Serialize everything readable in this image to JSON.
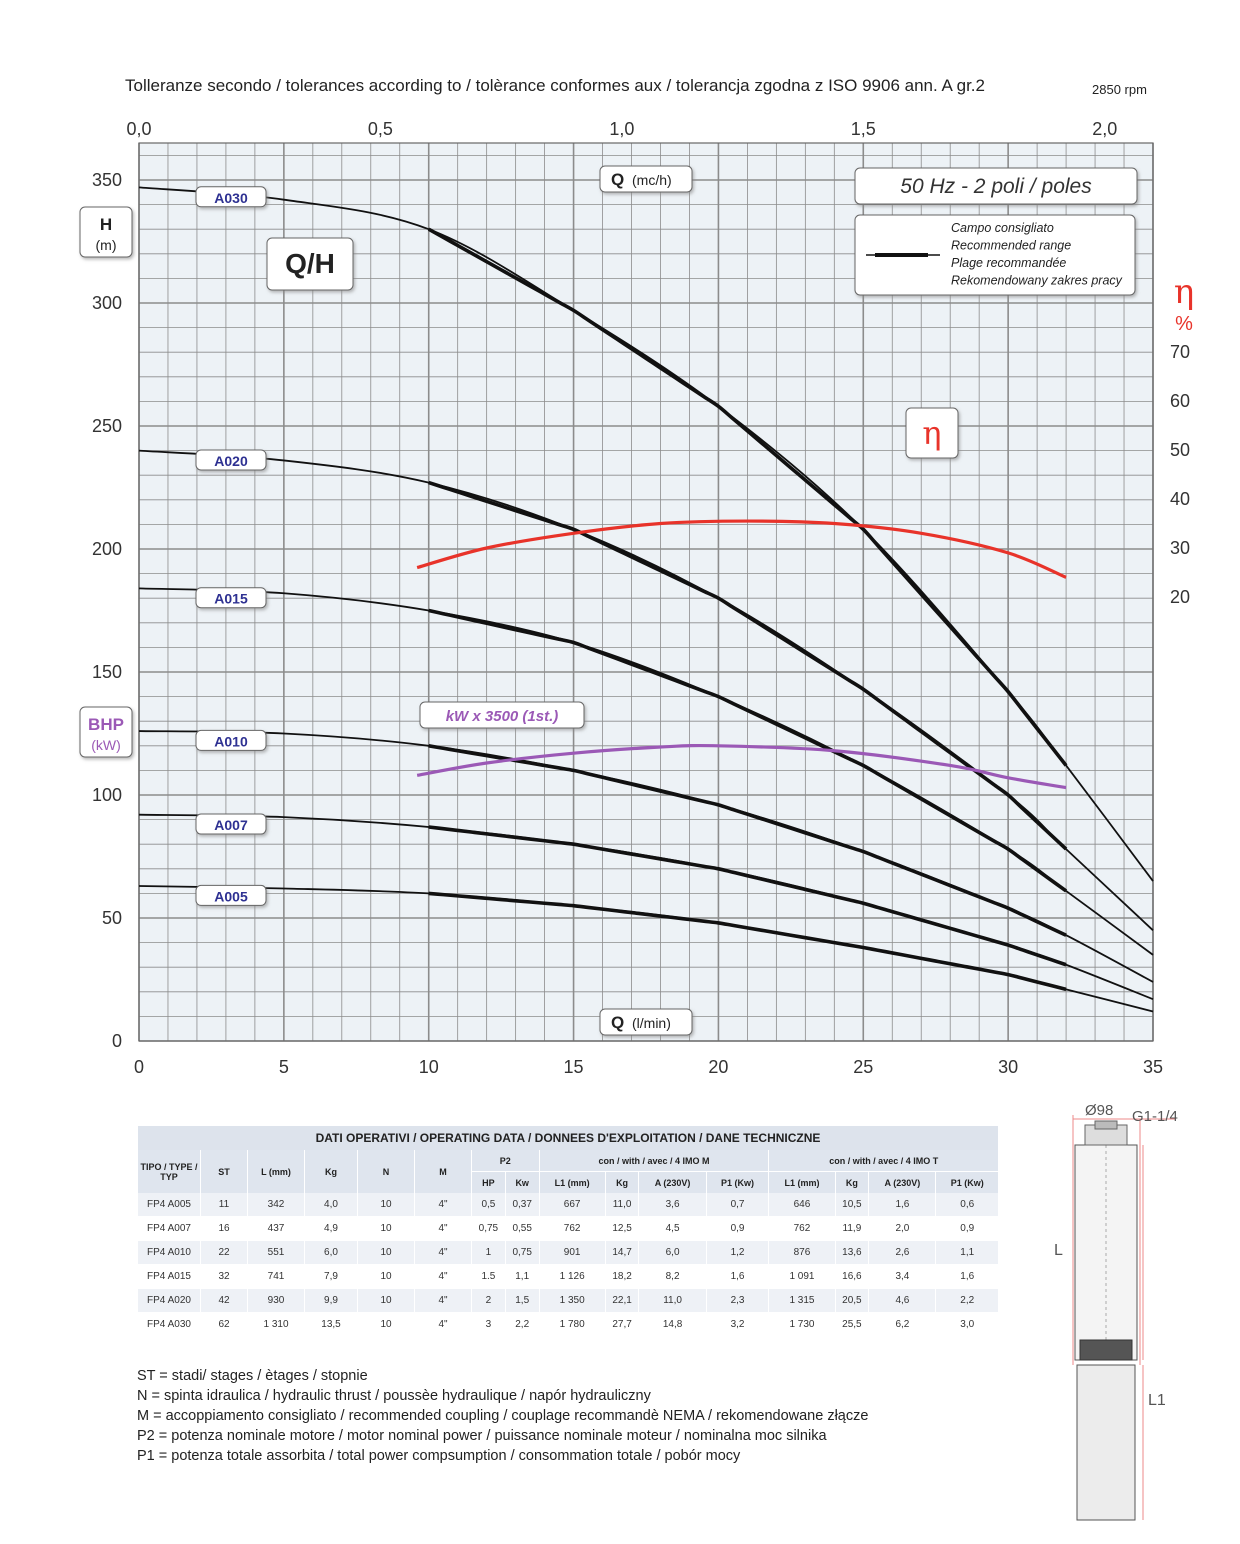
{
  "header": {
    "tolerances": "Tolleranze secondo / tolerances according to / tolèrance conformes aux / tolerancja zgodna z ISO 9906 ann. A gr.2",
    "rpm": "2850 rpm"
  },
  "chart_data": {
    "type": "line",
    "title": "Q/H",
    "frequency_badge": "50 Hz - 2 poli / poles",
    "recommended_range": [
      "Campo consigliato",
      "Recommended range",
      "Plage recommandée",
      "Rekomendowany zakres pracy"
    ],
    "xlabel_bottom": {
      "symbol": "Q",
      "unit": "(l/min)"
    },
    "xlabel_top": {
      "symbol": "Q",
      "unit": "(mc/h)"
    },
    "ylabel_left": {
      "symbol": "H",
      "unit": "(m)"
    },
    "ylabel_bhp": {
      "symbol": "BHP",
      "unit": "(kW)"
    },
    "ylabel_right": {
      "symbol": "η",
      "unit": "%"
    },
    "eta_badge": "η",
    "kw_badge": "kW x 3500 (1st.)",
    "xlim": [
      0,
      35
    ],
    "ylim": [
      0,
      360
    ],
    "x_top_lim": [
      0,
      2.1
    ],
    "x_ticks": [
      "0",
      "5",
      "10",
      "15",
      "20",
      "25",
      "30",
      "35"
    ],
    "x_top_ticks": [
      "0,0",
      "0,5",
      "1,0",
      "1,5",
      "2,0"
    ],
    "y_ticks": [
      "0",
      "50",
      "100",
      "150",
      "200",
      "250",
      "300",
      "350"
    ],
    "eta_ticks": [
      "20",
      "30",
      "40",
      "50",
      "60",
      "70"
    ],
    "grid": true,
    "colors": {
      "head": "#111111",
      "efficiency": "#e8332a",
      "power": "#9b59b6",
      "badge_text": "#2e3192",
      "grid": "#8c8c8c"
    },
    "series": [
      {
        "name": "A030",
        "x": [
          0,
          5,
          10,
          15,
          20,
          25,
          30,
          32,
          35
        ],
        "y": [
          347,
          342,
          330,
          297,
          258,
          208,
          142,
          112,
          65
        ],
        "rec": [
          10,
          32
        ]
      },
      {
        "name": "A020",
        "x": [
          0,
          5,
          10,
          15,
          20,
          25,
          30,
          32,
          35
        ],
        "y": [
          240,
          236,
          227,
          208,
          180,
          143,
          100,
          78,
          45
        ],
        "rec": [
          10,
          32
        ]
      },
      {
        "name": "A015",
        "x": [
          0,
          5,
          10,
          15,
          20,
          25,
          30,
          32,
          35
        ],
        "y": [
          184,
          182,
          175,
          162,
          140,
          112,
          78,
          61,
          35
        ],
        "rec": [
          10,
          32
        ]
      },
      {
        "name": "A010",
        "x": [
          0,
          5,
          10,
          15,
          20,
          25,
          30,
          32,
          35
        ],
        "y": [
          126,
          125,
          120,
          110,
          96,
          77,
          54,
          43,
          24
        ],
        "rec": [
          10,
          32
        ]
      },
      {
        "name": "A007",
        "x": [
          0,
          5,
          10,
          15,
          20,
          25,
          30,
          32,
          35
        ],
        "y": [
          92,
          91,
          87,
          80,
          70,
          56,
          39,
          31,
          17
        ],
        "rec": [
          10,
          32
        ]
      },
      {
        "name": "A005",
        "x": [
          0,
          5,
          10,
          15,
          20,
          25,
          30,
          32,
          35
        ],
        "y": [
          63,
          62,
          60,
          55,
          48,
          38,
          27,
          21,
          12
        ],
        "rec": [
          10,
          32
        ]
      }
    ],
    "efficiency": {
      "x": [
        9.6,
        12,
        15,
        18,
        21,
        24,
        27,
        30,
        32
      ],
      "y": [
        26,
        30,
        33,
        35,
        35.5,
        35,
        33,
        29,
        24
      ]
    },
    "power": {
      "x": [
        9.6,
        12,
        15,
        18,
        20,
        24,
        28,
        30,
        32
      ],
      "y": [
        108,
        113,
        117,
        119.5,
        120,
        118,
        112,
        107,
        103
      ]
    }
  },
  "table": {
    "title": "DATI OPERATIVI / OPERATING DATA / DONNEES D'EXPLOITATION / DANE TECHNICZNE",
    "h_tipo": "TIPO / TYPE / TYP",
    "h_st": "ST",
    "h_l": "L (mm)",
    "h_kg": "Kg",
    "h_n": "N",
    "h_m": "M",
    "h_p2": "P2",
    "h_con_m": "con / with / avec / 4 IMO M",
    "h_con_t": "con / with / avec / 4 IMO T",
    "sub": [
      "HP",
      "Kw",
      "L1 (mm)",
      "Kg",
      "A (230V)",
      "P1 (Kw)",
      "L1 (mm)",
      "Kg",
      "A (230V)",
      "P1 (Kw)"
    ],
    "rows": [
      [
        "FP4 A005",
        "11",
        "342",
        "4,0",
        "10",
        "4\"",
        "0,5",
        "0,37",
        "667",
        "11,0",
        "3,6",
        "0,7",
        "646",
        "10,5",
        "1,6",
        "0,6"
      ],
      [
        "FP4 A007",
        "16",
        "437",
        "4,9",
        "10",
        "4\"",
        "0,75",
        "0,55",
        "762",
        "12,5",
        "4,5",
        "0,9",
        "762",
        "11,9",
        "2,0",
        "0,9"
      ],
      [
        "FP4 A010",
        "22",
        "551",
        "6,0",
        "10",
        "4\"",
        "1",
        "0,75",
        "901",
        "14,7",
        "6,0",
        "1,2",
        "876",
        "13,6",
        "2,6",
        "1,1"
      ],
      [
        "FP4 A015",
        "32",
        "741",
        "7,9",
        "10",
        "4\"",
        "1.5",
        "1,1",
        "1 126",
        "18,2",
        "8,2",
        "1,6",
        "1 091",
        "16,6",
        "3,4",
        "1,6"
      ],
      [
        "FP4 A020",
        "42",
        "930",
        "9,9",
        "10",
        "4\"",
        "2",
        "1,5",
        "1 350",
        "22,1",
        "11,0",
        "2,3",
        "1 315",
        "20,5",
        "4,6",
        "2,2"
      ],
      [
        "FP4 A030",
        "62",
        "1 310",
        "13,5",
        "10",
        "4\"",
        "3",
        "2,2",
        "1 780",
        "27,7",
        "14,8",
        "3,2",
        "1 730",
        "25,5",
        "6,2",
        "3,0"
      ]
    ]
  },
  "legend": [
    "ST = stadi/ stages / ètages / stopnie",
    "N  = spinta idraulica / hydraulic thrust / poussèe hydraulique / napór hydrauliczny",
    "M  = accoppiamento consigliato / recommended coupling / couplage recommandè     NEMA / rekomendowane złącze",
    "P2 = potenza nominale motore / motor nominal power / puissance nominale moteur / nominalna moc silnika",
    "P1 = potenza totale assorbita / total power compsumption / consommation totale / pobór mocy"
  ],
  "pump": {
    "diameter": "Ø98",
    "thread": "G1-1/4",
    "l": "L",
    "l1": "L1"
  }
}
